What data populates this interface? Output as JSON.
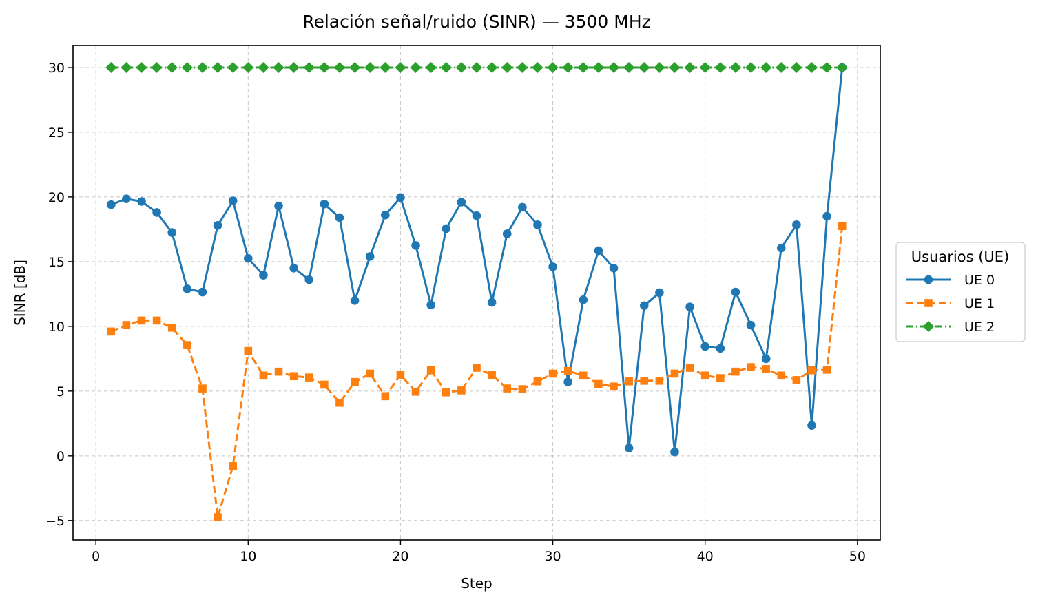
{
  "chart_data": {
    "type": "line",
    "title": "Relación señal/ruido (SINR) — 3500 MHz",
    "xlabel": "Step",
    "ylabel": "SINR [dB]",
    "xlim": [
      -1.5,
      51.5
    ],
    "ylim": [
      -6.5,
      31.7
    ],
    "xticks": [
      0,
      10,
      20,
      30,
      40,
      50
    ],
    "yticks": [
      -5,
      0,
      5,
      10,
      15,
      20,
      25,
      30
    ],
    "ytick_labels": [
      "−5",
      "0",
      "5",
      "10",
      "15",
      "20",
      "25",
      "30"
    ],
    "grid": true,
    "legend": {
      "title": "Usuarios (UE)",
      "placement": "outside-right"
    },
    "x": [
      1,
      2,
      3,
      4,
      5,
      6,
      7,
      8,
      9,
      10,
      11,
      12,
      13,
      14,
      15,
      16,
      17,
      18,
      19,
      20,
      21,
      22,
      23,
      24,
      25,
      26,
      27,
      28,
      29,
      30,
      31,
      32,
      33,
      34,
      35,
      36,
      37,
      38,
      39,
      40,
      41,
      42,
      43,
      44,
      45,
      46,
      47,
      48,
      49
    ],
    "series": [
      {
        "name": "UE 0",
        "color": "#1f77b4",
        "marker": "circle",
        "linestyle": "solid",
        "values": [
          19.4,
          19.85,
          19.65,
          18.8,
          17.25,
          12.9,
          12.65,
          17.8,
          19.7,
          15.25,
          13.95,
          19.3,
          14.5,
          13.6,
          19.45,
          18.4,
          12.0,
          15.4,
          18.6,
          19.95,
          16.25,
          11.65,
          17.55,
          19.6,
          18.55,
          11.85,
          17.15,
          19.2,
          17.85,
          14.6,
          5.7,
          12.05,
          15.85,
          14.5,
          0.6,
          11.6,
          12.6,
          0.3,
          11.5,
          8.45,
          8.3,
          12.65,
          10.1,
          7.5,
          16.05,
          17.85,
          2.35,
          18.5,
          30.0
        ]
      },
      {
        "name": "UE 1",
        "color": "#ff7f0e",
        "marker": "square",
        "linestyle": "dashed",
        "values": [
          9.6,
          10.1,
          10.45,
          10.45,
          9.9,
          8.55,
          5.2,
          -4.75,
          -0.8,
          8.1,
          6.2,
          6.5,
          6.15,
          6.05,
          5.5,
          4.1,
          5.7,
          6.35,
          4.6,
          6.25,
          4.95,
          6.6,
          4.9,
          5.05,
          6.8,
          6.25,
          5.2,
          5.15,
          5.75,
          6.35,
          6.55,
          6.2,
          5.55,
          5.35,
          5.75,
          5.8,
          5.8,
          6.35,
          6.8,
          6.2,
          6.0,
          6.5,
          6.85,
          6.7,
          6.2,
          5.85,
          6.6,
          6.65,
          17.75
        ]
      },
      {
        "name": "UE 2",
        "color": "#2ca02c",
        "marker": "diamond",
        "linestyle": "dashdot",
        "values": [
          30,
          30,
          30,
          30,
          30,
          30,
          30,
          30,
          30,
          30,
          30,
          30,
          30,
          30,
          30,
          30,
          30,
          30,
          30,
          30,
          30,
          30,
          30,
          30,
          30,
          30,
          30,
          30,
          30,
          30,
          30,
          30,
          30,
          30,
          30,
          30,
          30,
          30,
          30,
          30,
          30,
          30,
          30,
          30,
          30,
          30,
          30,
          30,
          30
        ]
      }
    ]
  }
}
